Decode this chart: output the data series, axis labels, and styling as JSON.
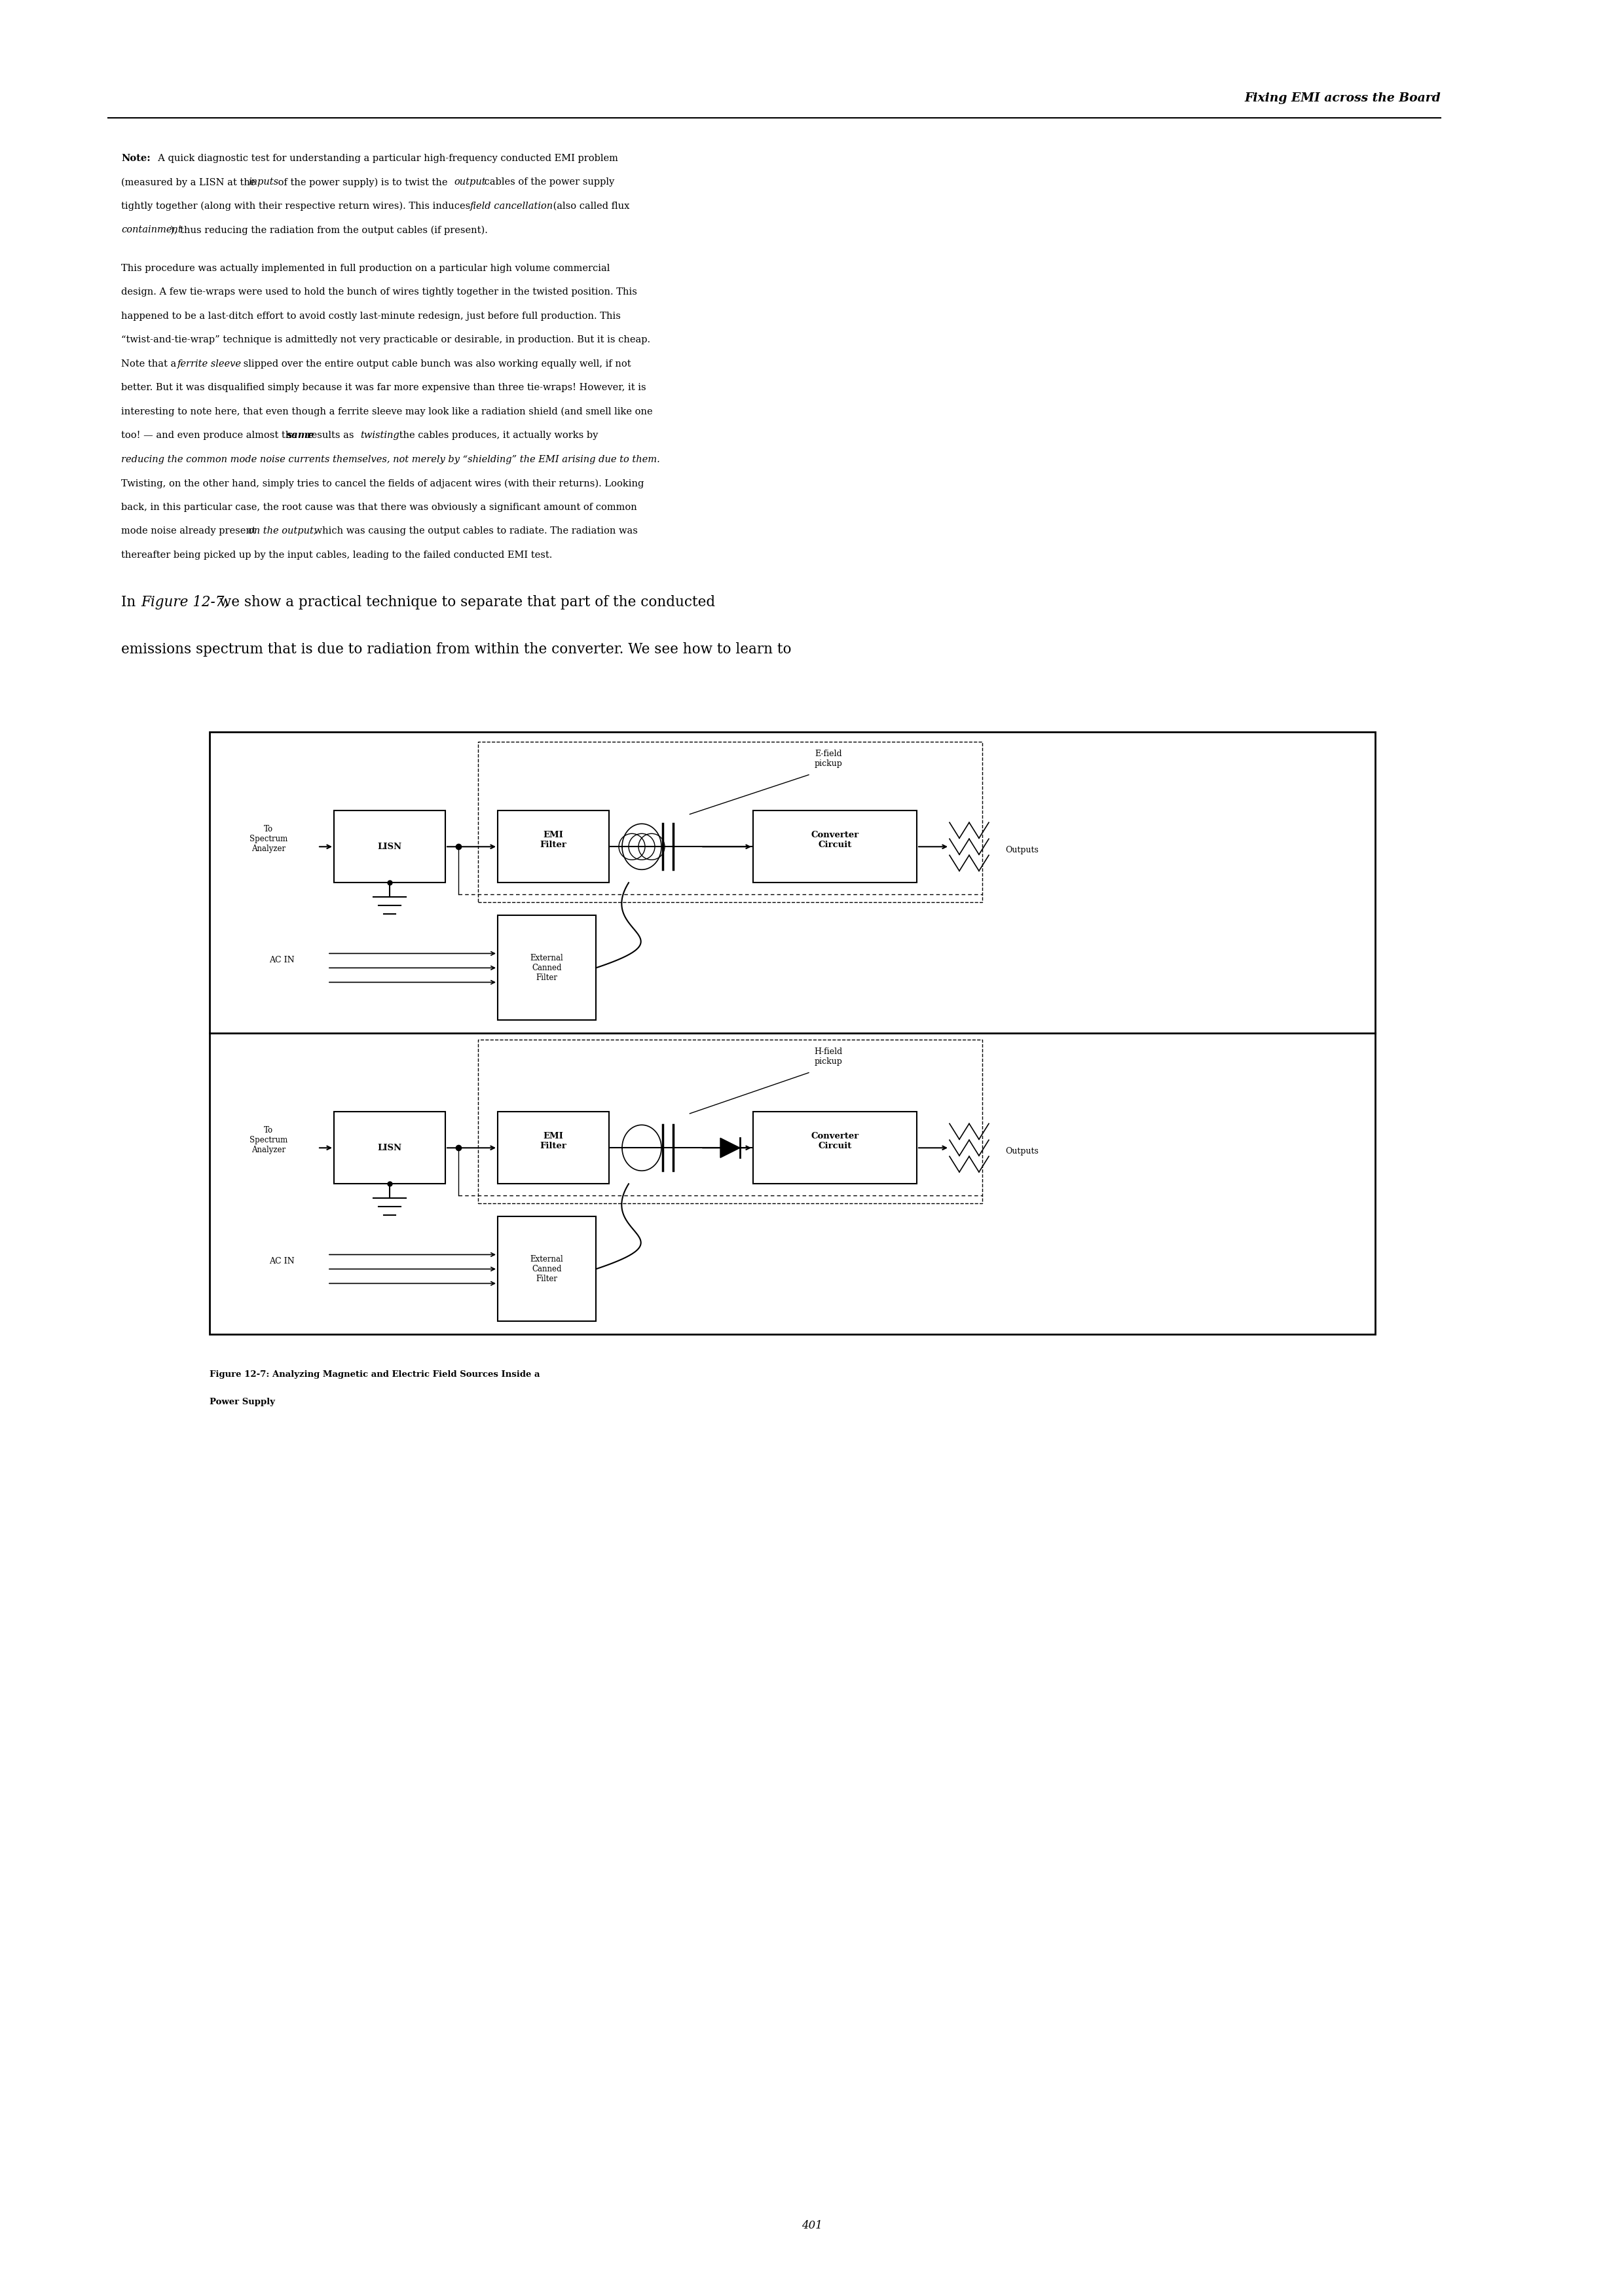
{
  "page_width": 24.8,
  "page_height": 35.04,
  "bg_color": "#ffffff",
  "header_title": "Fixing EMI across the Board",
  "page_number": "401",
  "text_color": "#000000",
  "fig_caption_line1": "Figure 12-7: Analyzing Magnetic and Electric Field Sources Inside a",
  "fig_caption_line2": "Power Supply",
  "note_line1": "Note:  A quick diagnostic test for understanding a particular high-frequency conducted EMI problem",
  "note_line2_p1": "(measured by a LISN at the ",
  "note_line2_i1": "inputs",
  "note_line2_p2": " of the power supply) is to twist the ",
  "note_line2_i2": "output",
  "note_line2_p3": " cables of the power supply",
  "note_line3_p1": "tightly together (along with their respective return wires). This induces ",
  "note_line3_i1": "field cancellation",
  "note_line3_p2": " (also called flux",
  "note_line4_i1": "containment",
  "note_line4_p1": "), thus reducing the radiation from the output cables (if present).",
  "p2_l01": "This procedure was actually implemented in full production on a particular high volume commercial",
  "p2_l02": "design. A few tie-wraps were used to hold the bunch of wires tightly together in the twisted position. This",
  "p2_l03": "happened to be a last-ditch effort to avoid costly last-minute redesign, just before full production. This",
  "p2_l04": "“twist-and-tie-wrap” technique is admittedly not very practicable or desirable, in production. But it is cheap.",
  "p2_l05_p1": "Note that a ",
  "p2_l05_i1": "ferrite sleeve",
  "p2_l05_p2": " slipped over the entire output cable bunch was also working equally well, if not",
  "p2_l06": "better. But it was disqualified simply because it was far more expensive than three tie-wraps! However, it is",
  "p2_l07": "interesting to note here, that even though a ferrite sleeve may look like a radiation shield (and smell like one",
  "p2_l08_p1": "too! — and even produce almost the ",
  "p2_l08_i1": "same",
  "p2_l08_p2": " results as ",
  "p2_l08_i2": "twisting",
  "p2_l08_p3": " the cables produces, it actually works by",
  "p2_l09_i1": "reducing the common mode noise currents themselves, not merely by “shielding” the EMI arising due to them.",
  "p2_l10": "Twisting, on the other hand, simply tries to cancel the fields of adjacent wires (with their returns). Looking",
  "p2_l11": "back, in this particular case, the root cause was that there was obviously a significant amount of common",
  "p2_l12_p1": "mode noise already present ",
  "p2_l12_i1": "on the output,",
  "p2_l12_p2": " which was causing the output cables to radiate. The radiation was",
  "p2_l13": "thereafter being picked up by the input cables, leading to the failed conducted EMI test.",
  "p3_p1": "In ",
  "p3_i1": "Figure 12-7,",
  "p3_p2": " we show a practical technique to separate that part of the conducted",
  "p3_l2": "emissions spectrum that is due to radiation from within the converter. We see how to learn to"
}
